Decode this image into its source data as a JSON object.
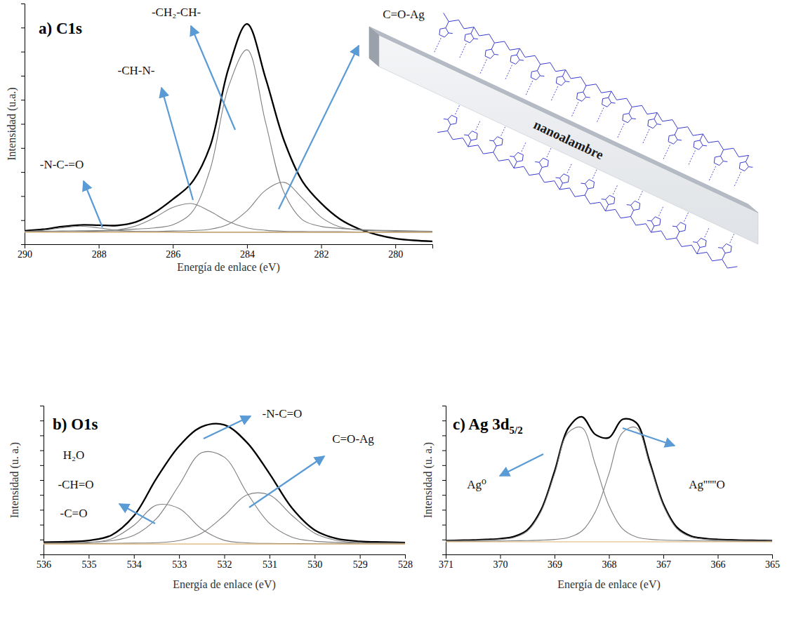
{
  "chart_data": [
    {
      "type": "line",
      "title": "a) C1s",
      "x_label": "Energía de enlace (eV)",
      "y_label": "Intensidad (u.a.)",
      "x": [
        290,
        289.5,
        289,
        288.5,
        288,
        287.5,
        287,
        286.5,
        286,
        285.5,
        285,
        284.5,
        284,
        283.5,
        283,
        282.5,
        282,
        281.5,
        281,
        280.5,
        280,
        279.5,
        279
      ],
      "xlim": [
        290,
        279
      ],
      "xticks": [
        290,
        288,
        286,
        284,
        282,
        280
      ],
      "ylim": [
        0,
        100
      ],
      "yticks": [
        0,
        10,
        20,
        30,
        40,
        50,
        60,
        70,
        80,
        90,
        100
      ],
      "tick_labels": "x",
      "annotations": [
        "-N-C-=O",
        "-CH-N-",
        "-CH₂-CH-",
        "C=O-Ag"
      ],
      "series": [
        {
          "color": "#000000",
          "values": [
            5.6,
            6.2,
            7.3,
            8.0,
            7.9,
            7.8,
            9.2,
            13.1,
            18.7,
            25.4,
            40.5,
            73.0,
            91.5,
            69.0,
            43.0,
            26.0,
            17.0,
            10.5,
            6.5,
            4.0,
            2.4,
            1.6,
            1.2
          ]
        },
        {
          "color": "#7f7f7f",
          "values": [
            5.3,
            5.8,
            6.8,
            7.5,
            6.8,
            5.8,
            5.3,
            5.1,
            5.1,
            5.0,
            5.0,
            5.0,
            5.0,
            5.0,
            5.0,
            5.0,
            5.0,
            5.0,
            5.0,
            5.0,
            5.0,
            5.0,
            5.0
          ]
        },
        {
          "color": "#7f7f7f",
          "values": [
            5.2,
            5.2,
            5.2,
            5.3,
            5.5,
            6.0,
            7.6,
            11.0,
            15.3,
            16.9,
            13.7,
            9.4,
            6.8,
            5.8,
            5.4,
            5.3,
            5.2,
            5.2,
            5.1,
            5.1,
            5.1,
            5.1,
            5.1
          ]
        },
        {
          "color": "#7f7f7f",
          "values": [
            5.3,
            5.4,
            5.5,
            5.6,
            5.7,
            5.9,
            6.3,
            6.8,
            8.1,
            13.0,
            30.8,
            65.4,
            80.8,
            50.6,
            21.4,
            10.1,
            7.4,
            6.6,
            6.1,
            5.8,
            5.7,
            5.5,
            5.4
          ]
        },
        {
          "color": "#7f7f7f",
          "values": [
            5.1,
            5.1,
            5.1,
            5.1,
            5.2,
            5.2,
            5.3,
            5.3,
            5.5,
            5.7,
            6.2,
            8.3,
            13.9,
            22.4,
            25.7,
            19.0,
            11.2,
            7.2,
            5.9,
            5.6,
            5.4,
            5.3,
            5.2
          ]
        },
        {
          "color": "#d9b26f",
          "values": [
            5,
            5,
            5,
            5,
            5,
            5,
            5,
            5,
            5,
            5,
            5,
            5,
            5,
            5,
            5,
            5,
            5,
            5,
            5,
            5,
            5,
            5,
            5
          ]
        }
      ]
    },
    {
      "type": "line",
      "title": "b) O1s",
      "x_label": "Energía de enlace (eV)",
      "y_label": "Intensidad (u. a.)",
      "x": [
        536,
        535.5,
        535,
        534.5,
        534,
        533.5,
        533,
        532.5,
        532,
        531.5,
        531,
        530.5,
        530,
        529.5,
        529,
        528.5,
        528
      ],
      "xlim": [
        536,
        528
      ],
      "xticks": [
        536,
        535,
        534,
        533,
        532,
        531,
        530,
        529,
        528
      ],
      "ylim": [
        0,
        100
      ],
      "yticks": [
        0,
        10,
        20,
        30,
        40,
        50,
        60,
        70,
        80,
        90,
        100
      ],
      "tick_labels": "x",
      "annotations": [
        "H₂O",
        "-CH=O",
        "-C=O",
        "-N-C=O",
        "C=O-Ag"
      ],
      "series": [
        {
          "color": "#000000",
          "values": [
            8.2,
            8.5,
            9.4,
            12.9,
            25.9,
            51.1,
            72.8,
            85.8,
            87.1,
            75.3,
            54.3,
            31.1,
            16.4,
            10.5,
            8.8,
            8.3,
            8.0
          ]
        },
        {
          "color": "#7f7f7f",
          "values": [
            7.3,
            7.5,
            7.9,
            10.4,
            19.6,
            33.1,
            30.9,
            17.1,
            9.5,
            7.8,
            7.4,
            7.3,
            7.2,
            7.2,
            7.1,
            7.1,
            7.1
          ]
        },
        {
          "color": "#7f7f7f",
          "values": [
            7.6,
            7.8,
            8.2,
            9.2,
            12.8,
            24.1,
            46.6,
            68.4,
            65.4,
            41.5,
            20.9,
            11.6,
            8.9,
            8.1,
            7.8,
            7.6,
            7.5
          ]
        },
        {
          "color": "#7f7f7f",
          "values": [
            7.2,
            7.2,
            7.3,
            7.4,
            7.6,
            7.9,
            9.3,
            14.3,
            26.2,
            40.0,
            40.0,
            26.2,
            14.3,
            9.3,
            7.9,
            7.6,
            7.4
          ]
        },
        {
          "color": "#d9b26f",
          "values": [
            7,
            7,
            7,
            7,
            7,
            7,
            7,
            7,
            7,
            7,
            7,
            7,
            7,
            7,
            7,
            7,
            7
          ]
        }
      ]
    },
    {
      "type": "line",
      "title": "c) Ag 3d5/2",
      "x_label": "Energía de enlace (eV)",
      "y_label": "Intensidad (u. a.)",
      "x": [
        371,
        370.75,
        370.5,
        370.25,
        370,
        369.75,
        369.5,
        369.25,
        369,
        368.75,
        368.5,
        368.25,
        368,
        367.75,
        367.5,
        367.25,
        367,
        366.75,
        366.5,
        366.25,
        366,
        365.75,
        365.5,
        365.25,
        365
      ],
      "xlim": [
        371,
        365
      ],
      "xticks": [
        371,
        370,
        369,
        368,
        367,
        366,
        365
      ],
      "ylim": [
        0,
        100
      ],
      "yticks": [
        0,
        10,
        20,
        30,
        40,
        50,
        60,
        70,
        80,
        90,
        100
      ],
      "tick_labels": "x",
      "annotations": [
        "Ag⁰",
        "Ag''''''O"
      ],
      "series": [
        {
          "color": "#000000",
          "values": [
            9.3,
            9.5,
            9.7,
            10.1,
            10.6,
            12.0,
            16.5,
            29.8,
            55.8,
            84.7,
            92.5,
            80.6,
            78.5,
            90.8,
            88.6,
            62.1,
            34.0,
            18.2,
            12.5,
            10.8,
            10.1,
            9.8,
            9.5,
            9.4,
            9.2
          ]
        },
        {
          "color": "#7f7f7f",
          "values": [
            9.0,
            9.2,
            9.3,
            9.6,
            10.1,
            11.3,
            15.7,
            28.7,
            54.2,
            81.9,
            85.3,
            60.4,
            32.8,
            17.3,
            11.8,
            10.2,
            9.7,
            9.4,
            9.2,
            9.1,
            9.0,
            8.9,
            8.8,
            8.8,
            8.8
          ]
        },
        {
          "color": "#7f7f7f",
          "values": [
            8.8,
            8.8,
            8.9,
            8.9,
            9.0,
            9.2,
            9.3,
            9.6,
            10.1,
            11.3,
            15.7,
            28.7,
            54.2,
            81.9,
            85.3,
            60.4,
            32.8,
            17.3,
            11.8,
            10.2,
            9.7,
            9.4,
            9.2,
            9.1,
            9.0
          ]
        },
        {
          "color": "#d9b26f",
          "values": [
            8.5,
            8.5,
            8.5,
            8.5,
            8.5,
            8.5,
            8.5,
            8.5,
            8.5,
            8.5,
            8.5,
            8.5,
            8.5,
            8.5,
            8.5,
            8.5,
            8.5,
            8.5,
            8.5,
            8.5,
            8.5,
            8.5,
            8.5,
            8.5,
            8.5
          ]
        }
      ]
    }
  ],
  "diagram": {
    "label": "nanoalambre"
  }
}
